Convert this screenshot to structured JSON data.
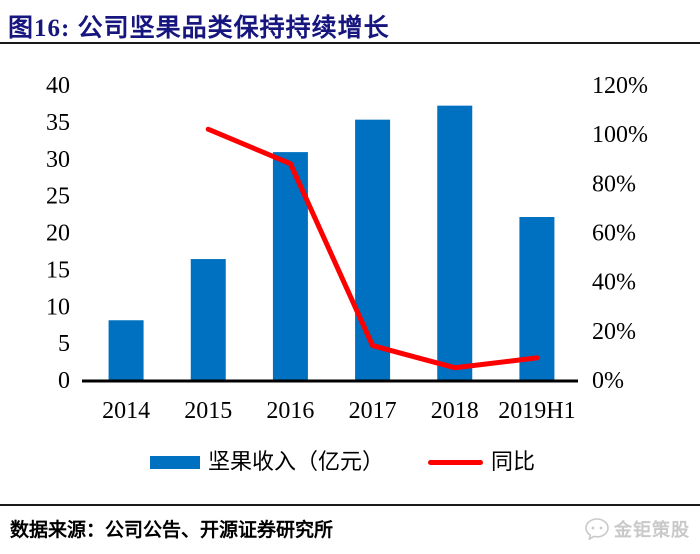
{
  "header": {
    "title": "图16:  公司坚果品类保持持续增长"
  },
  "chart_data": {
    "type": "bar",
    "title": "公司坚果品类保持持续增长",
    "categories": [
      "2014",
      "2015",
      "2016",
      "2017",
      "2018",
      "2019H1"
    ],
    "series": [
      {
        "name": "坚果收入（亿元）",
        "type": "bar",
        "axis": "left",
        "values": [
          8.1,
          16.4,
          30.9,
          35.3,
          37.2,
          22.1
        ]
      },
      {
        "name": "同比",
        "type": "line",
        "axis": "right",
        "values": [
          null,
          102,
          88,
          14,
          5,
          9
        ],
        "unit": "%"
      }
    ],
    "left_axis": {
      "min": 0,
      "max": 40,
      "step": 5,
      "suffix": ""
    },
    "right_axis": {
      "min": 0,
      "max": 120,
      "step": 20,
      "suffix": "%"
    },
    "grid": false,
    "legend_position": "bottom",
    "xlabel": "",
    "ylabel": ""
  },
  "legend": {
    "bar_label": "坚果收入（亿元）",
    "line_label": "同比"
  },
  "footer": {
    "source": "数据来源：公司公告、开源证券研究所"
  },
  "watermark": {
    "text": "金钜策股"
  },
  "colors": {
    "bar": "#0070C0",
    "line": "#FE0000",
    "title": "#16167E",
    "rule": "#1A1A1A",
    "axis_line": "#000000",
    "axis_text": "#000000",
    "watermark": "#C9C9C9"
  }
}
